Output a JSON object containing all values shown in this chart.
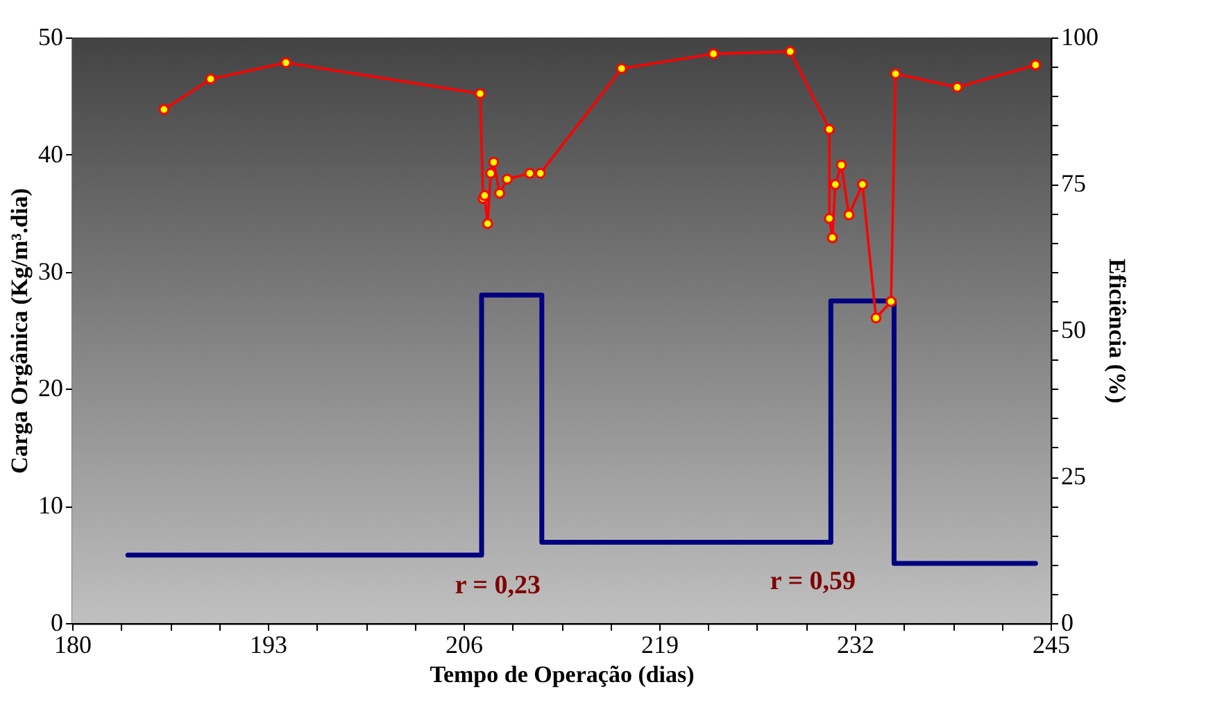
{
  "chart_data": {
    "type": "line",
    "xlabel": "Tempo de Operação (dias)",
    "ylabel": "Carga Orgânica (Kg/m³.dia)",
    "y2label": "Eficiência (%)",
    "xlim": [
      180,
      245
    ],
    "xticks": [
      180,
      {
        "value": 183.25,
        "label": null
      },
      {
        "value": 186.5,
        "label": null
      },
      {
        "value": 189.75,
        "label": null
      },
      193,
      {
        "value": 196.25,
        "label": null
      },
      {
        "value": 199.5,
        "label": null
      },
      {
        "value": 202.75,
        "label": null
      },
      206,
      {
        "value": 209.25,
        "label": null
      },
      {
        "value": 212.5,
        "label": null
      },
      {
        "value": 215.75,
        "label": null
      },
      219,
      {
        "value": 222.25,
        "label": null
      },
      {
        "value": 225.5,
        "label": null
      },
      {
        "value": 228.75,
        "label": null
      },
      232,
      {
        "value": 235.25,
        "label": null
      },
      {
        "value": 238.5,
        "label": null
      },
      {
        "value": 241.75,
        "label": null
      },
      245
    ],
    "ylim": [
      0,
      50
    ],
    "yticks": [
      0,
      10,
      20,
      30,
      40,
      50
    ],
    "y2lim": [
      0,
      100
    ],
    "y2ticks": [
      0,
      {
        "value": 5,
        "label": null
      },
      {
        "value": 10,
        "label": null
      },
      {
        "value": 15,
        "label": null
      },
      {
        "value": 20,
        "label": null
      },
      25,
      {
        "value": 30,
        "label": null
      },
      {
        "value": 35,
        "label": null
      },
      {
        "value": 40,
        "label": null
      },
      {
        "value": 45,
        "label": null
      },
      50,
      {
        "value": 55,
        "label": null
      },
      {
        "value": 60,
        "label": null
      },
      {
        "value": 65,
        "label": null
      },
      {
        "value": 70,
        "label": null
      },
      75,
      {
        "value": 80,
        "label": null
      },
      {
        "value": 85,
        "label": null
      },
      {
        "value": 90,
        "label": null
      },
      {
        "value": 95,
        "label": null
      },
      100
    ],
    "series": [
      {
        "type": "step",
        "color": "#000080",
        "marker": "none",
        "x": [
          183.7,
          207.2,
          211.2,
          230.4,
          234.6,
          244
        ],
        "values": [
          5.8,
          28,
          6.9,
          27.5,
          5.1,
          5.1
        ]
      },
      {
        "color": "#ff0000",
        "marker": "circle",
        "axis": "y2",
        "x": [
          186.1,
          189.2,
          194.2,
          207.1,
          207.3,
          207.4,
          207.6,
          207.8,
          208.0,
          208.4,
          208.9,
          210.4,
          211.1,
          216.5,
          222.6,
          227.7,
          230.3,
          230.3,
          230.5,
          230.7,
          231.1,
          231.6,
          232.5,
          233.4,
          234.4,
          234.7,
          238.8,
          244.0
        ],
        "values": [
          87.7,
          92.9,
          95.7,
          90.4,
          72.5,
          73.0,
          68.2,
          76.8,
          78.7,
          73.4,
          75.8,
          76.8,
          76.8,
          94.7,
          97.2,
          97.6,
          84.3,
          69.1,
          65.8,
          74.9,
          78.2,
          69.7,
          74.9,
          52.1,
          54.9,
          93.8,
          91.5,
          95.3
        ]
      }
    ],
    "annotations": [
      "r = 0,23",
      "r = 0,59"
    ]
  }
}
